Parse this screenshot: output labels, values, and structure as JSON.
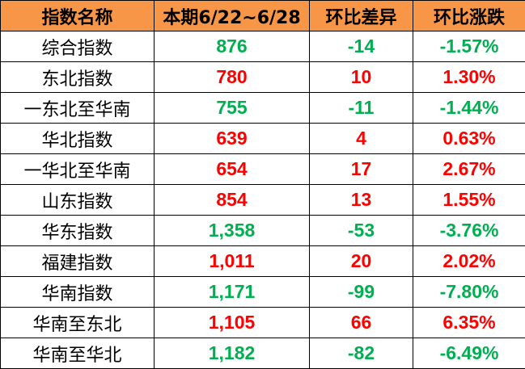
{
  "headers": [
    "指数名称",
    "本期6/22~6/28",
    "环比差异",
    "环比涨跌"
  ],
  "colors": {
    "up": "#FF0000",
    "down": "#00B050",
    "header_bg": "#F79646"
  },
  "rows": [
    {
      "name": "综合指数",
      "value": "876",
      "diff": "-14",
      "pct": "-1.57%",
      "trend": "down"
    },
    {
      "name": "东北指数",
      "value": "780",
      "diff": "10",
      "pct": "1.30%",
      "trend": "up"
    },
    {
      "name": "一东北至华南",
      "value": "755",
      "diff": "-11",
      "pct": "-1.44%",
      "trend": "down"
    },
    {
      "name": "华北指数",
      "value": "639",
      "diff": "4",
      "pct": "0.63%",
      "trend": "up"
    },
    {
      "name": "一华北至华南",
      "value": "654",
      "diff": "17",
      "pct": "2.67%",
      "trend": "up"
    },
    {
      "name": "山东指数",
      "value": "854",
      "diff": "13",
      "pct": "1.55%",
      "trend": "up"
    },
    {
      "name": "华东指数",
      "value": "1,358",
      "diff": "-53",
      "pct": "-3.76%",
      "trend": "down"
    },
    {
      "name": "福建指数",
      "value": "1,011",
      "diff": "20",
      "pct": "2.02%",
      "trend": "up"
    },
    {
      "name": "华南指数",
      "value": "1,171",
      "diff": "-99",
      "pct": "-7.80%",
      "trend": "down"
    },
    {
      "name": "华南至东北",
      "value": "1,105",
      "diff": "66",
      "pct": "6.35%",
      "trend": "up"
    },
    {
      "name": "华南至华北",
      "value": "1,182",
      "diff": "-82",
      "pct": "-6.49%",
      "trend": "down"
    }
  ]
}
